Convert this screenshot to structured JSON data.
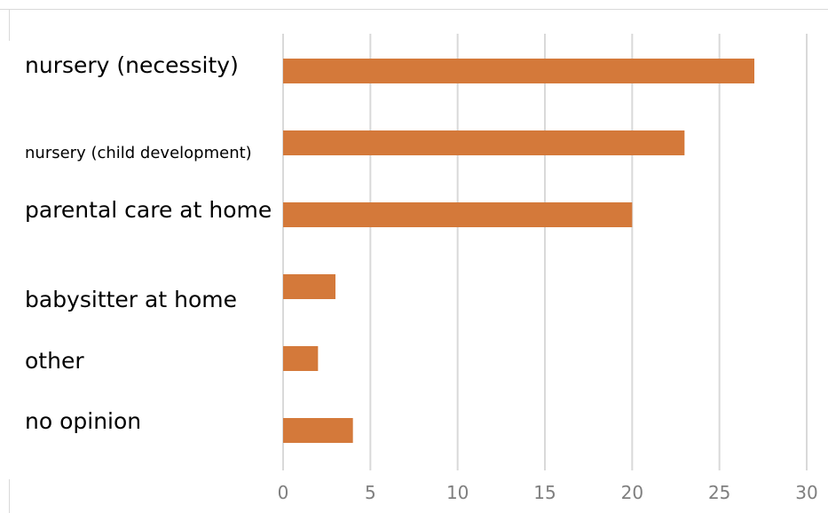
{
  "chart_data": {
    "type": "bar",
    "orientation": "horizontal",
    "categories": [
      "nursery (necessity)",
      "nursery (child development)",
      "parental care at home",
      "babysitter at home",
      "other",
      "no opinion"
    ],
    "values": [
      27,
      23,
      20,
      3,
      2,
      4
    ],
    "xlim": [
      0,
      30
    ],
    "xticks": [
      "0",
      "5",
      "10",
      "15",
      "20",
      "25",
      "30"
    ],
    "grid": true,
    "legend": "none",
    "bar_color": "#d4793a",
    "title": "",
    "xlabel": "",
    "ylabel": ""
  }
}
